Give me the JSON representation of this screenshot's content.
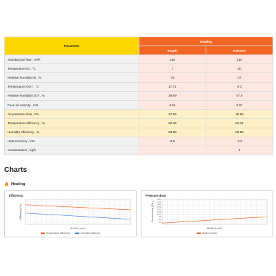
{
  "table": {
    "param_header": "Parameter",
    "group_header": "Heating",
    "supply_header": "Supply",
    "exhaust_header": "Exhaust",
    "rows": [
      {
        "label": "Standard air flow , m³/h",
        "supply": "150",
        "exhaust": "150",
        "style": "neutral"
      },
      {
        "label": "Temperature IN , °C",
        "supply": "7",
        "exhaust": "20",
        "style": "neutral"
      },
      {
        "label": "Relative humidity IN , %",
        "supply": "75",
        "exhaust": "37",
        "style": "neutral"
      },
      {
        "label": "Temperature OUT , °C",
        "supply": "17.71",
        "exhaust": "9.3",
        "style": "neutral"
      },
      {
        "label": "Relative humidity OUT , %",
        "supply": "39.69",
        "exhaust": "67.9",
        "style": "neutral"
      },
      {
        "label": "Face air velocity , m/s",
        "supply": "0.54",
        "exhaust": "0.57",
        "style": "neutral"
      },
      {
        "label": "Air pressure drop , Pa",
        "supply": "37.65",
        "exhaust": "39.86",
        "style": "warn"
      },
      {
        "label": "Temperature efficiency , %",
        "supply": "82.36",
        "exhaust": "82.31",
        "style": "warn"
      },
      {
        "label": "Humidity efficiency , %",
        "supply": "58.96",
        "exhaust": "58.96",
        "style": "warn"
      },
      {
        "label": "Heat recovery , kW",
        "supply": "0.9",
        "exhaust": "-0.6",
        "style": "neutral"
      },
      {
        "label": "Condensation , kg/h",
        "supply": "",
        "exhaust": "0",
        "style": "neutral"
      }
    ]
  },
  "charts_title": "Charts",
  "heating_label": "Heating",
  "flame_icon": "flame-icon",
  "colors": {
    "orange": "#f26522",
    "yellow": "#fdd600",
    "blue": "#3a7bd5"
  },
  "chart_data": [
    {
      "type": "line",
      "title": "Efficiency",
      "xlabel": "Air flow [ m³/h ]",
      "ylabel": "Efficiency [ % ]",
      "ylim": [
        40,
        100
      ],
      "x": [
        60,
        200
      ],
      "grid": true,
      "legend": "bottom",
      "series": [
        {
          "name": "Temperature efficiency",
          "values": [
            87,
            75
          ],
          "color": "#f26522"
        },
        {
          "name": "Humidity efficiency",
          "values": [
            67,
            52
          ],
          "color": "#3a7bd5"
        }
      ]
    },
    {
      "type": "line",
      "title": "Pressure drop",
      "xlabel": "Air flow [ m³/h ]",
      "ylabel": "Pressure drop [ Pa ]",
      "ylim": [
        0,
        250
      ],
      "yticks": [
        25,
        50,
        75,
        100,
        125,
        150,
        175,
        200,
        225,
        250
      ],
      "x": [
        60,
        200
      ],
      "grid": true,
      "legend": "bottom",
      "series": [
        {
          "name": "Static pressure",
          "values": [
            12,
            75
          ],
          "color": "#f26522"
        }
      ]
    }
  ]
}
